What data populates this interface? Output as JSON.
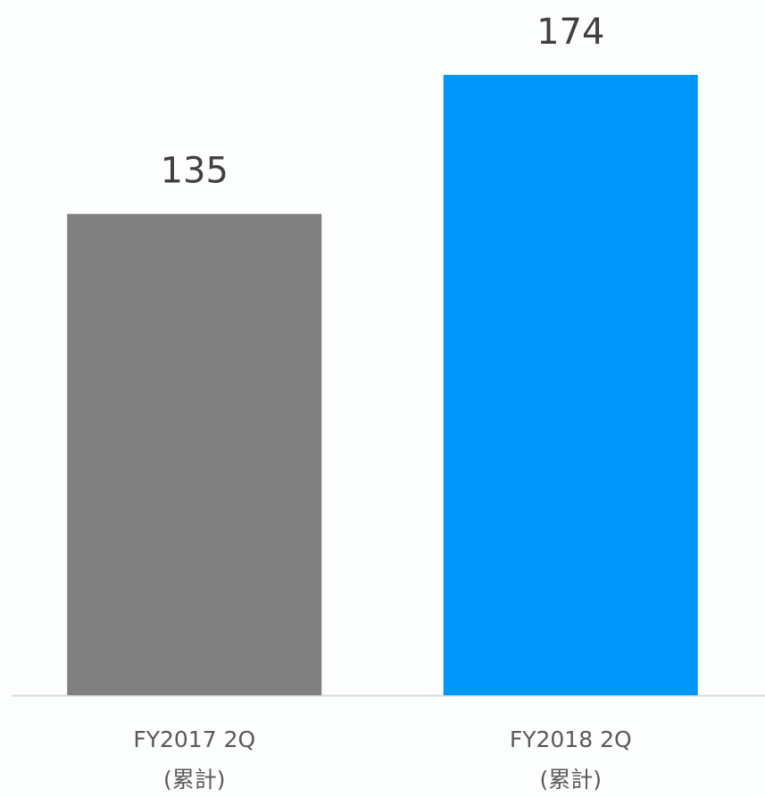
{
  "chart_data": {
    "type": "bar",
    "categories": [
      "FY2017 2Q\n(累計)",
      "FY2018 2Q\n(累計)"
    ],
    "values": [
      135,
      174
    ],
    "colors": [
      "#808080",
      "#0096fa"
    ],
    "ylim": [
      0,
      195
    ]
  }
}
